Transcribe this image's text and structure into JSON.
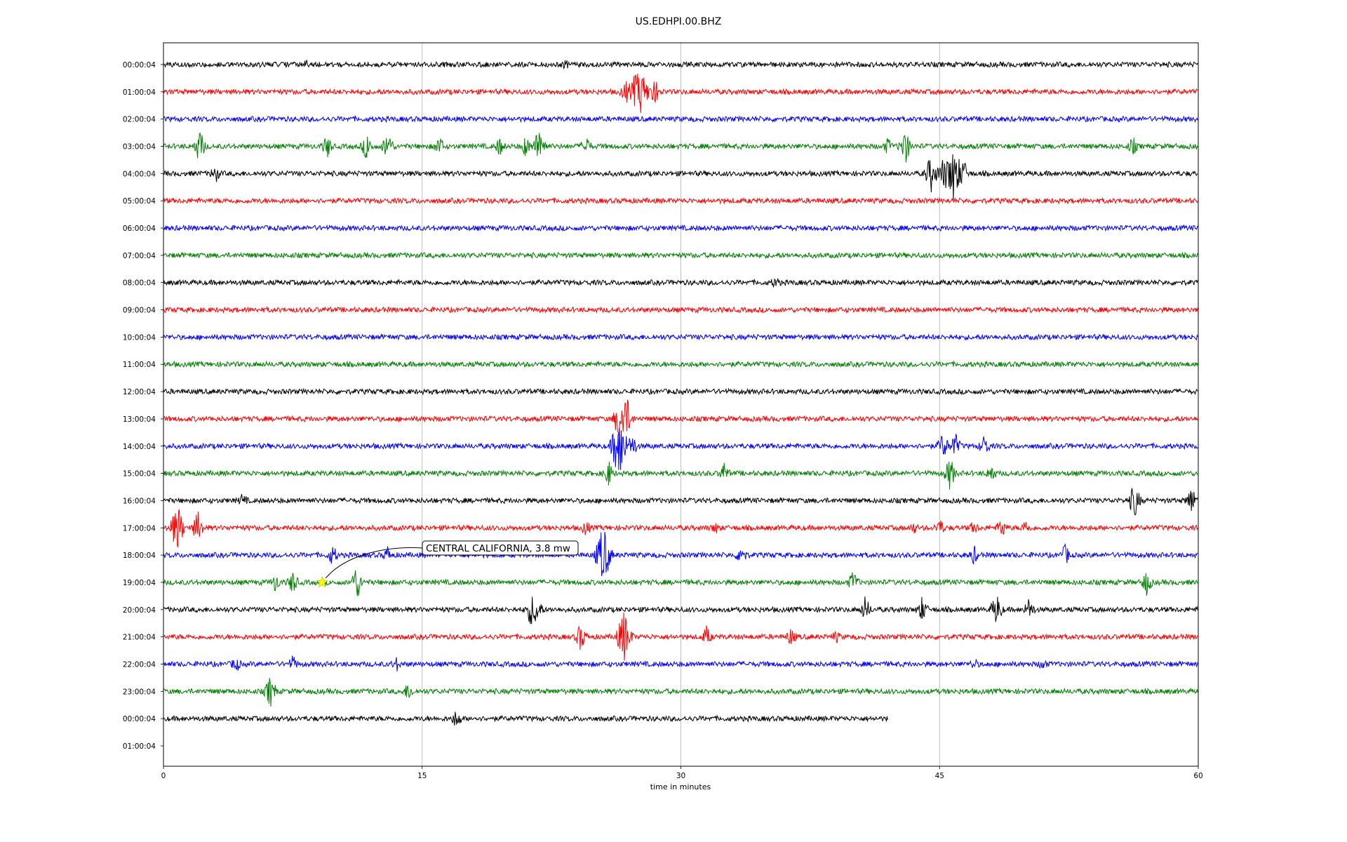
{
  "chart_data": {
    "type": "line",
    "title": "US.EDHPI.00.BHZ",
    "xlabel": "time in minutes",
    "ylabel": "",
    "xlim": [
      0,
      60
    ],
    "x_ticks": [
      "0",
      "15",
      "30",
      "45",
      "60"
    ],
    "grid": "vertical",
    "row_colors": [
      "#000000",
      "#ff0000",
      "#0000ff",
      "#008000"
    ],
    "rows": [
      {
        "label": "00:00:04",
        "end": 60,
        "events": [
          [
            23.3,
            0.25
          ],
          [
            8.3,
            0.2
          ]
        ]
      },
      {
        "label": "01:00:04",
        "end": 60,
        "events": [
          [
            26.8,
            0.9
          ],
          [
            27.3,
            1.0
          ],
          [
            27.7,
            1.8
          ],
          [
            28.3,
            0.8
          ],
          [
            28.6,
            0.6
          ]
        ]
      },
      {
        "label": "02:00:04",
        "end": 60,
        "events": []
      },
      {
        "label": "03:00:04",
        "end": 60,
        "events": [
          [
            2.1,
            1.3
          ],
          [
            9.5,
            0.9
          ],
          [
            11.8,
            1.1
          ],
          [
            13.0,
            1.2
          ],
          [
            16.0,
            0.8
          ],
          [
            19.5,
            0.7
          ],
          [
            21.0,
            0.8
          ],
          [
            21.8,
            1.6
          ],
          [
            24.5,
            0.8
          ],
          [
            42.0,
            0.6
          ],
          [
            43.0,
            1.4
          ],
          [
            56.2,
            0.7
          ]
        ]
      },
      {
        "label": "04:00:04",
        "end": 60,
        "events": [
          [
            3.0,
            0.7
          ],
          [
            44.5,
            1.5
          ],
          [
            45.2,
            1.2
          ],
          [
            45.8,
            2.4
          ],
          [
            46.4,
            1.0
          ]
        ]
      },
      {
        "label": "05:00:04",
        "end": 60,
        "events": []
      },
      {
        "label": "06:00:04",
        "end": 60,
        "events": []
      },
      {
        "label": "07:00:04",
        "end": 60,
        "events": []
      },
      {
        "label": "08:00:04",
        "end": 60,
        "events": [
          [
            35.5,
            0.4
          ]
        ]
      },
      {
        "label": "09:00:04",
        "end": 60,
        "events": []
      },
      {
        "label": "10:00:04",
        "end": 60,
        "events": []
      },
      {
        "label": "11:00:04",
        "end": 60,
        "events": []
      },
      {
        "label": "12:00:04",
        "end": 60,
        "events": []
      },
      {
        "label": "13:00:04",
        "end": 60,
        "events": [
          [
            26.5,
            2.0
          ],
          [
            26.9,
            1.2
          ]
        ]
      },
      {
        "label": "14:00:04",
        "end": 60,
        "events": [
          [
            26.2,
            1.2
          ],
          [
            26.5,
            2.2
          ],
          [
            27.2,
            0.9
          ],
          [
            45.2,
            1.1
          ],
          [
            45.9,
            1.0
          ],
          [
            47.6,
            0.9
          ]
        ]
      },
      {
        "label": "15:00:04",
        "end": 60,
        "events": [
          [
            25.8,
            1.0
          ],
          [
            32.5,
            0.8
          ],
          [
            45.6,
            1.3
          ],
          [
            48.0,
            0.7
          ]
        ]
      },
      {
        "label": "16:00:04",
        "end": 60,
        "events": [
          [
            4.6,
            0.5
          ],
          [
            56.3,
            1.4
          ],
          [
            59.6,
            1.1
          ]
        ]
      },
      {
        "label": "17:00:04",
        "end": 60,
        "events": [
          [
            0.8,
            2.0
          ],
          [
            2.0,
            1.3
          ],
          [
            24.5,
            0.6
          ],
          [
            32.0,
            0.4
          ],
          [
            43.5,
            0.4
          ],
          [
            45.0,
            0.7
          ],
          [
            47.0,
            0.5
          ],
          [
            48.6,
            0.8
          ],
          [
            50.0,
            0.6
          ]
        ]
      },
      {
        "label": "18:00:04",
        "end": 60,
        "events": [
          [
            9.8,
            0.8
          ],
          [
            13.0,
            0.6
          ],
          [
            25.5,
            2.5
          ],
          [
            33.5,
            0.9
          ],
          [
            47.0,
            0.7
          ],
          [
            52.3,
            0.8
          ]
        ]
      },
      {
        "label": "19:00:04",
        "end": 60,
        "events": [
          [
            6.5,
            0.7
          ],
          [
            7.5,
            0.9
          ],
          [
            11.2,
            1.4
          ],
          [
            40.0,
            0.9
          ],
          [
            57.0,
            1.0
          ]
        ]
      },
      {
        "label": "20:00:04",
        "end": 60,
        "events": [
          [
            21.3,
            1.2
          ],
          [
            21.7,
            1.0
          ],
          [
            40.7,
            1.0
          ],
          [
            44.0,
            1.0
          ],
          [
            48.3,
            1.3
          ],
          [
            50.2,
            0.9
          ]
        ]
      },
      {
        "label": "21:00:04",
        "end": 60,
        "events": [
          [
            24.2,
            1.1
          ],
          [
            26.7,
            2.2
          ],
          [
            31.5,
            0.8
          ],
          [
            36.4,
            0.7
          ],
          [
            39.0,
            0.4
          ]
        ]
      },
      {
        "label": "22:00:04",
        "end": 60,
        "events": [
          [
            4.2,
            0.6
          ],
          [
            7.5,
            0.6
          ],
          [
            13.5,
            0.5
          ],
          [
            47.0,
            0.4
          ],
          [
            51.0,
            0.4
          ]
        ]
      },
      {
        "label": "23:00:04",
        "end": 60,
        "events": [
          [
            6.2,
            1.3
          ],
          [
            14.2,
            0.7
          ]
        ]
      },
      {
        "label": "00:00:04",
        "end": 42,
        "events": [
          [
            17.0,
            0.8
          ]
        ]
      },
      {
        "label": "01:00:04",
        "end": 0,
        "events": []
      }
    ],
    "annotation": {
      "text": "CENTRAL CALIFORNIA, 3.8 mw",
      "row": 19,
      "x": 9.2,
      "marker": "star",
      "marker_color": "#ffff00"
    }
  }
}
